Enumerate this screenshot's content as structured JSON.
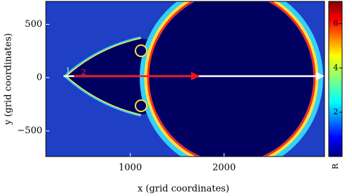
{
  "chart_data": {
    "type": "heatmap",
    "colormap": "jet",
    "xlabel": "x (grid coordinates)",
    "ylabel": "y (grid coordinates)",
    "xlim": [
      100,
      3070
    ],
    "xticks": [
      1000,
      2000
    ],
    "ylim": [
      -740,
      715
    ],
    "yticks": [
      {
        "value": -500,
        "label": "−500"
      },
      0,
      500
    ],
    "clim": [
      0,
      7
    ],
    "cticks": [
      2,
      4,
      6
    ],
    "colorbar_label": "R",
    "annotations": [
      "1",
      "2"
    ]
  }
}
